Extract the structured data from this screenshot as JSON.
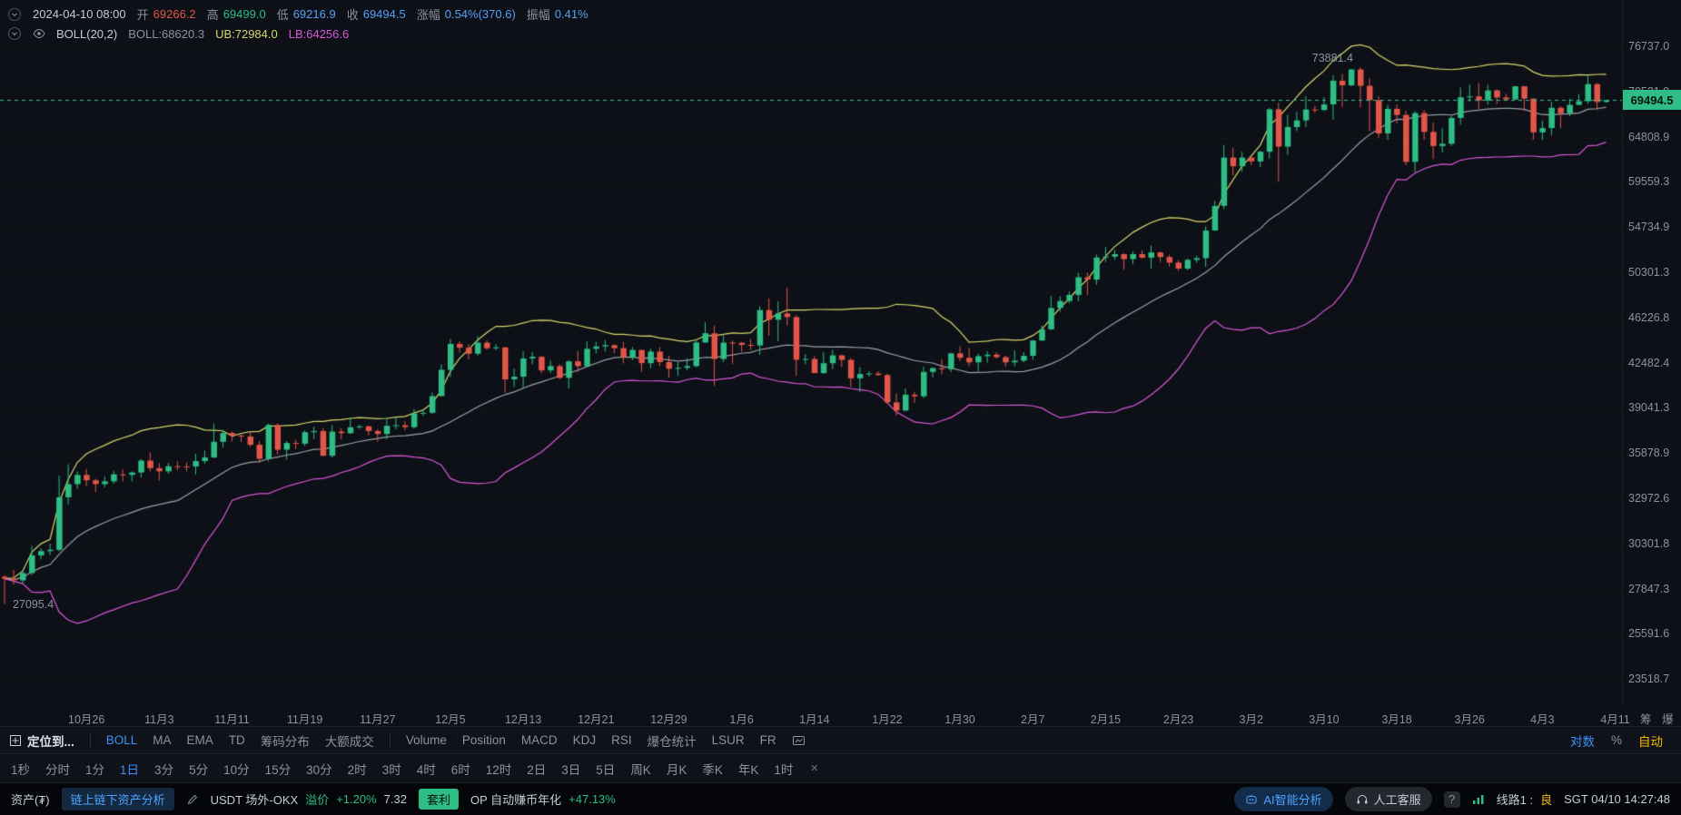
{
  "ohlc": {
    "datetime": "2024-04-10 08:00",
    "open_label": "开",
    "open": "69266.2",
    "high_label": "高",
    "high": "69499.0",
    "low_label": "低",
    "low": "69216.9",
    "close_label": "收",
    "close": "69494.5",
    "change_label": "涨幅",
    "change": "0.54%(370.6)",
    "amp_label": "振幅",
    "amp": "0.41%"
  },
  "boll": {
    "title": "BOLL(20,2)",
    "mb": "BOLL:68620.3",
    "ub": "UB:72984.0",
    "lb": "LB:64256.6"
  },
  "chart_data": {
    "type": "candlestick",
    "scale": "log",
    "y_axis_top": 76737.0,
    "y_axis": [
      "76737.0",
      "70521.9",
      "64808.9",
      "59559.3",
      "54734.9",
      "50301.3",
      "46226.8",
      "42482.4",
      "39041.3",
      "35878.9",
      "32972.6",
      "30301.8",
      "27847.3",
      "25591.6",
      "23518.7"
    ],
    "x_labels": [
      {
        "i": 9,
        "t": "10月26"
      },
      {
        "i": 17,
        "t": "11月3"
      },
      {
        "i": 25,
        "t": "11月11"
      },
      {
        "i": 33,
        "t": "11月19"
      },
      {
        "i": 41,
        "t": "11月27"
      },
      {
        "i": 49,
        "t": "12月5"
      },
      {
        "i": 57,
        "t": "12月13"
      },
      {
        "i": 65,
        "t": "12月21"
      },
      {
        "i": 73,
        "t": "12月29"
      },
      {
        "i": 81,
        "t": "1月6"
      },
      {
        "i": 89,
        "t": "1月14"
      },
      {
        "i": 97,
        "t": "1月22"
      },
      {
        "i": 105,
        "t": "1月30"
      },
      {
        "i": 113,
        "t": "2月7"
      },
      {
        "i": 121,
        "t": "2月15"
      },
      {
        "i": 129,
        "t": "2月23"
      },
      {
        "i": 137,
        "t": "3月2"
      },
      {
        "i": 145,
        "t": "3月10"
      },
      {
        "i": 153,
        "t": "3月18"
      },
      {
        "i": 161,
        "t": "3月26"
      },
      {
        "i": 169,
        "t": "4月3"
      },
      {
        "i": 177,
        "t": "4月11"
      }
    ],
    "current_price": 69494.5,
    "current_price_label": "69494.5",
    "high_annotation": {
      "text": "73881.4",
      "candle_index": 149
    },
    "low_annotation": {
      "text": "27095.4",
      "candle_index": 0
    },
    "boll_overlay": {
      "period": 20,
      "mult": 2
    },
    "candles": [
      [
        28522,
        28600,
        27095.4,
        28415
      ],
      [
        28415,
        28900,
        28100,
        28328
      ],
      [
        28328,
        28890,
        28180,
        28720
      ],
      [
        28720,
        30207,
        28600,
        29684
      ],
      [
        29684,
        30080,
        29470,
        29918
      ],
      [
        29918,
        30335,
        29700,
        29993
      ],
      [
        29993,
        34450,
        29900,
        33086
      ],
      [
        33086,
        35198,
        32650,
        33908
      ],
      [
        33908,
        34720,
        33620,
        34500
      ],
      [
        34500,
        34892,
        33780,
        34156
      ],
      [
        34156,
        34250,
        33416,
        33909
      ],
      [
        33909,
        34405,
        33700,
        34089
      ],
      [
        34089,
        34756,
        33930,
        34534
      ],
      [
        34534,
        34860,
        34064,
        34500
      ],
      [
        34500,
        34717,
        34081,
        34657
      ],
      [
        34657,
        35527,
        34330,
        35437
      ],
      [
        35437,
        35976,
        34714,
        34938
      ],
      [
        34938,
        35269,
        34134,
        34733
      ],
      [
        34733,
        35288,
        34573,
        35065
      ],
      [
        35065,
        35377,
        34800,
        35049
      ],
      [
        35049,
        35297,
        34735,
        35043
      ],
      [
        35043,
        35888,
        34525,
        35402
      ],
      [
        35402,
        36103,
        35210,
        35645
      ],
      [
        35645,
        37978,
        35582,
        36702
      ],
      [
        36702,
        37526,
        36318,
        37313
      ],
      [
        37313,
        37408,
        36725,
        37138
      ],
      [
        37138,
        37240,
        36687,
        37072
      ],
      [
        37072,
        37427,
        36363,
        36496
      ],
      [
        36496,
        36750,
        35307,
        35549
      ],
      [
        35549,
        37980,
        35373,
        37880
      ],
      [
        37880,
        37980,
        35861,
        36164
      ],
      [
        36164,
        36750,
        35513,
        36620
      ],
      [
        36620,
        36846,
        36200,
        36568
      ],
      [
        36568,
        37500,
        36402,
        37368
      ],
      [
        37368,
        37758,
        36868,
        37447
      ],
      [
        37447,
        37649,
        35735,
        35756
      ],
      [
        35756,
        37861,
        35632,
        37408
      ],
      [
        37408,
        37653,
        36870,
        37294
      ],
      [
        37294,
        38415,
        37251,
        37713
      ],
      [
        37713,
        37888,
        37591,
        37780
      ],
      [
        37780,
        37814,
        37150,
        37447
      ],
      [
        37447,
        37569,
        36707,
        37242
      ],
      [
        37242,
        38377,
        36868,
        37818
      ],
      [
        37818,
        38450,
        37570,
        37854
      ],
      [
        37854,
        38145,
        37500,
        37723
      ],
      [
        37723,
        38999,
        37615,
        38688
      ],
      [
        38688,
        39000,
        38513,
        38745
      ],
      [
        38745,
        40250,
        38666,
        39972
      ],
      [
        39972,
        42420,
        39960,
        41986
      ],
      [
        41986,
        44488,
        41424,
        44073
      ],
      [
        44073,
        44297,
        43346,
        43762
      ],
      [
        43762,
        44047,
        42821,
        43272
      ],
      [
        43272,
        44700,
        43081,
        44172
      ],
      [
        44172,
        44358,
        43584,
        43712
      ],
      [
        43712,
        44049,
        43563,
        43789
      ],
      [
        43789,
        43808,
        40222,
        41243
      ],
      [
        41243,
        42104,
        40660,
        41452
      ],
      [
        41452,
        43475,
        40555,
        42890
      ],
      [
        42890,
        43420,
        42433,
        43023
      ],
      [
        43023,
        43080,
        41700,
        41940
      ],
      [
        41940,
        42724,
        41723,
        42278
      ],
      [
        42278,
        42419,
        41252,
        41364
      ],
      [
        41364,
        42757,
        40542,
        42657
      ],
      [
        42657,
        43497,
        41811,
        42276
      ],
      [
        42276,
        44283,
        42206,
        43668
      ],
      [
        43668,
        44242,
        43286,
        43861
      ],
      [
        43861,
        44398,
        43440,
        43964
      ],
      [
        43964,
        44050,
        43291,
        43721
      ],
      [
        43721,
        44249,
        42500,
        42991
      ],
      [
        42991,
        43804,
        42745,
        43576
      ],
      [
        43576,
        43592,
        41811,
        42514
      ],
      [
        42514,
        43677,
        42098,
        43442
      ],
      [
        43442,
        43804,
        42283,
        42600
      ],
      [
        42600,
        43111,
        41400,
        42072
      ],
      [
        42072,
        42600,
        41520,
        42141
      ],
      [
        42141,
        42899,
        41965,
        42280
      ],
      [
        42280,
        44400,
        42180,
        44187
      ],
      [
        44187,
        45899,
        44148,
        44957
      ],
      [
        44957,
        45600,
        40750,
        42845
      ],
      [
        42845,
        44770,
        42613,
        44179
      ],
      [
        44179,
        44357,
        42450,
        44162
      ],
      [
        44162,
        44233,
        43421,
        43989
      ],
      [
        43989,
        44480,
        43572,
        43941
      ],
      [
        43941,
        47281,
        43175,
        46951
      ],
      [
        46951,
        47972,
        44748,
        46106
      ],
      [
        46106,
        47695,
        44300,
        46653
      ],
      [
        46653,
        48969,
        45606,
        46339
      ],
      [
        46339,
        46515,
        41500,
        42782
      ],
      [
        42782,
        43257,
        42436,
        42847
      ],
      [
        42847,
        43079,
        41720,
        41732
      ],
      [
        41732,
        43400,
        41680,
        42509
      ],
      [
        42509,
        43578,
        42050,
        43137
      ],
      [
        43137,
        43198,
        42201,
        42776
      ],
      [
        42776,
        42930,
        40631,
        41327
      ],
      [
        41327,
        42196,
        40280,
        41659
      ],
      [
        41659,
        41872,
        41456,
        41696
      ],
      [
        41696,
        41881,
        41500,
        41580
      ],
      [
        41580,
        41689,
        39431,
        39507
      ],
      [
        39507,
        40176,
        38555,
        38905
      ],
      [
        38905,
        40555,
        38886,
        40077
      ],
      [
        40077,
        40300,
        39484,
        39961
      ],
      [
        39961,
        42246,
        39822,
        41823
      ],
      [
        41823,
        42200,
        41394,
        42120
      ],
      [
        42120,
        42842,
        41620,
        42031
      ],
      [
        42031,
        43333,
        41804,
        43302
      ],
      [
        43302,
        43882,
        42683,
        42941
      ],
      [
        42941,
        43745,
        42276,
        42580
      ],
      [
        42580,
        43287,
        41884,
        43077
      ],
      [
        43077,
        43488,
        42546,
        43194
      ],
      [
        43194,
        43379,
        42880,
        42994
      ],
      [
        42994,
        43119,
        42222,
        42577
      ],
      [
        42577,
        43540,
        42258,
        42708
      ],
      [
        42708,
        43399,
        42574,
        43098
      ],
      [
        43098,
        44396,
        42788,
        44349
      ],
      [
        44349,
        45614,
        44335,
        45288
      ],
      [
        45288,
        48200,
        45242,
        47132
      ],
      [
        47132,
        48170,
        46800,
        47751
      ],
      [
        47751,
        48592,
        47557,
        48299
      ],
      [
        48299,
        50334,
        47710,
        49917
      ],
      [
        49917,
        50368,
        48300,
        49699
      ],
      [
        49699,
        52079,
        49225,
        51795
      ],
      [
        51795,
        52816,
        51339,
        51880
      ],
      [
        51880,
        52537,
        51582,
        52124
      ],
      [
        52124,
        52192,
        50625,
        51642
      ],
      [
        51642,
        52377,
        51164,
        52122
      ],
      [
        52122,
        52488,
        51677,
        51779
      ],
      [
        51779,
        52985,
        50750,
        52284
      ],
      [
        52284,
        52366,
        51360,
        51839
      ],
      [
        51839,
        52076,
        50930,
        51304
      ],
      [
        51304,
        51548,
        50521,
        50731
      ],
      [
        50731,
        51698,
        50585,
        51568
      ],
      [
        51568,
        51958,
        51288,
        51733
      ],
      [
        51733,
        54910,
        50901,
        54476
      ],
      [
        54476,
        57576,
        54450,
        57037
      ],
      [
        57037,
        63913,
        56691,
        62432
      ],
      [
        62432,
        63585,
        60364,
        61425
      ],
      [
        61425,
        63111,
        60777,
        62440
      ],
      [
        62440,
        62500,
        61561,
        61987
      ],
      [
        61987,
        63231,
        61320,
        63113
      ],
      [
        63113,
        68499,
        62300,
        68330
      ],
      [
        68330,
        69170,
        59700,
        63724
      ],
      [
        63724,
        67641,
        62779,
        66099
      ],
      [
        66099,
        67980,
        65598,
        66925
      ],
      [
        66925,
        69990,
        66081,
        68300
      ],
      [
        68300,
        68769,
        67861,
        68245
      ],
      [
        68245,
        69887,
        68094,
        68955
      ],
      [
        68955,
        72800,
        67024,
        72078
      ],
      [
        72078,
        73000,
        68620,
        71452
      ],
      [
        71452,
        73637,
        71333,
        73611
      ],
      [
        73611,
        73881.4,
        68555,
        71388
      ],
      [
        71388,
        72419,
        65600,
        69499
      ],
      [
        69499,
        70043,
        64780,
        65313
      ],
      [
        65313,
        68904,
        64533,
        68390
      ],
      [
        68390,
        68956,
        66565,
        67609
      ],
      [
        67609,
        68124,
        61555,
        61937
      ],
      [
        61937,
        68100,
        60775,
        67840
      ],
      [
        67840,
        68240,
        64529,
        65501
      ],
      [
        65501,
        66649,
        62260,
        63796
      ],
      [
        63796,
        65999,
        63000,
        64062
      ],
      [
        64062,
        67622,
        63772,
        67234
      ],
      [
        67234,
        71150,
        66385,
        69880
      ],
      [
        69880,
        71561,
        69280,
        69988
      ],
      [
        69988,
        71769,
        68359,
        69469
      ],
      [
        69469,
        71552,
        68903,
        70780
      ],
      [
        70780,
        70916,
        69019,
        69850
      ],
      [
        69850,
        70321,
        69540,
        69582
      ],
      [
        69582,
        71366,
        69562,
        71333
      ],
      [
        71333,
        71342,
        68110,
        69702
      ],
      [
        69702,
        69708,
        64550,
        65446
      ],
      [
        65446,
        66914,
        64493,
        65980
      ],
      [
        65980,
        69291,
        65113,
        68508
      ],
      [
        68508,
        68725,
        65952,
        67837
      ],
      [
        67837,
        69692,
        67465,
        68896
      ],
      [
        68896,
        70284,
        68851,
        69362
      ],
      [
        69362,
        72797,
        69043,
        71620
      ],
      [
        71620,
        71758,
        68210,
        69266.2
      ],
      [
        69266.2,
        69499.0,
        69216.9,
        69494.5
      ]
    ]
  },
  "xaxis_buttons": {
    "chips": "筹",
    "liq": "爆"
  },
  "toolbar": {
    "locate_label": "定位到...",
    "main_items": [
      "BOLL",
      "MA",
      "EMA",
      "TD",
      "筹码分布",
      "大额成交"
    ],
    "active_main": "BOLL",
    "sub_items": [
      "Volume",
      "Position",
      "MACD",
      "KDJ",
      "RSI",
      "爆仓统计",
      "LSUR",
      "FR"
    ],
    "log_label": "对数",
    "percent_label": "%",
    "auto_label": "自动"
  },
  "timeframes": {
    "items": [
      "1秒",
      "分时",
      "1分",
      "1日",
      "3分",
      "5分",
      "10分",
      "15分",
      "30分",
      "2时",
      "3时",
      "4时",
      "6时",
      "12时",
      "2日",
      "3日",
      "5日",
      "周K",
      "月K",
      "季K",
      "年K",
      "1时"
    ],
    "active": "1日",
    "close_icon": "×"
  },
  "status": {
    "asset": "资产(₮)",
    "analysis": "链上链下资产分析",
    "market": "USDT 场外-OKX",
    "premium_label": "溢价",
    "premium_value": "+1.20%",
    "price": "7.32",
    "arb": "套利",
    "op_label": "OP 自动赚币年化",
    "op_value": "+47.13%",
    "ai": "AI智能分析",
    "service": "人工客服",
    "help": "?",
    "line_label": "线路1 :",
    "line_status": "良",
    "clock": "SGT 04/10 14:27:48"
  },
  "colors": {
    "up": "#2ebd85",
    "down": "#e25649",
    "boll_upper": "#d6d66b",
    "boll_mid": "#9aa0aa",
    "boll_lower": "#d957d9",
    "accent": "#3d8ff7",
    "warn": "#f0b90b",
    "price_line": "#2ebd85"
  }
}
